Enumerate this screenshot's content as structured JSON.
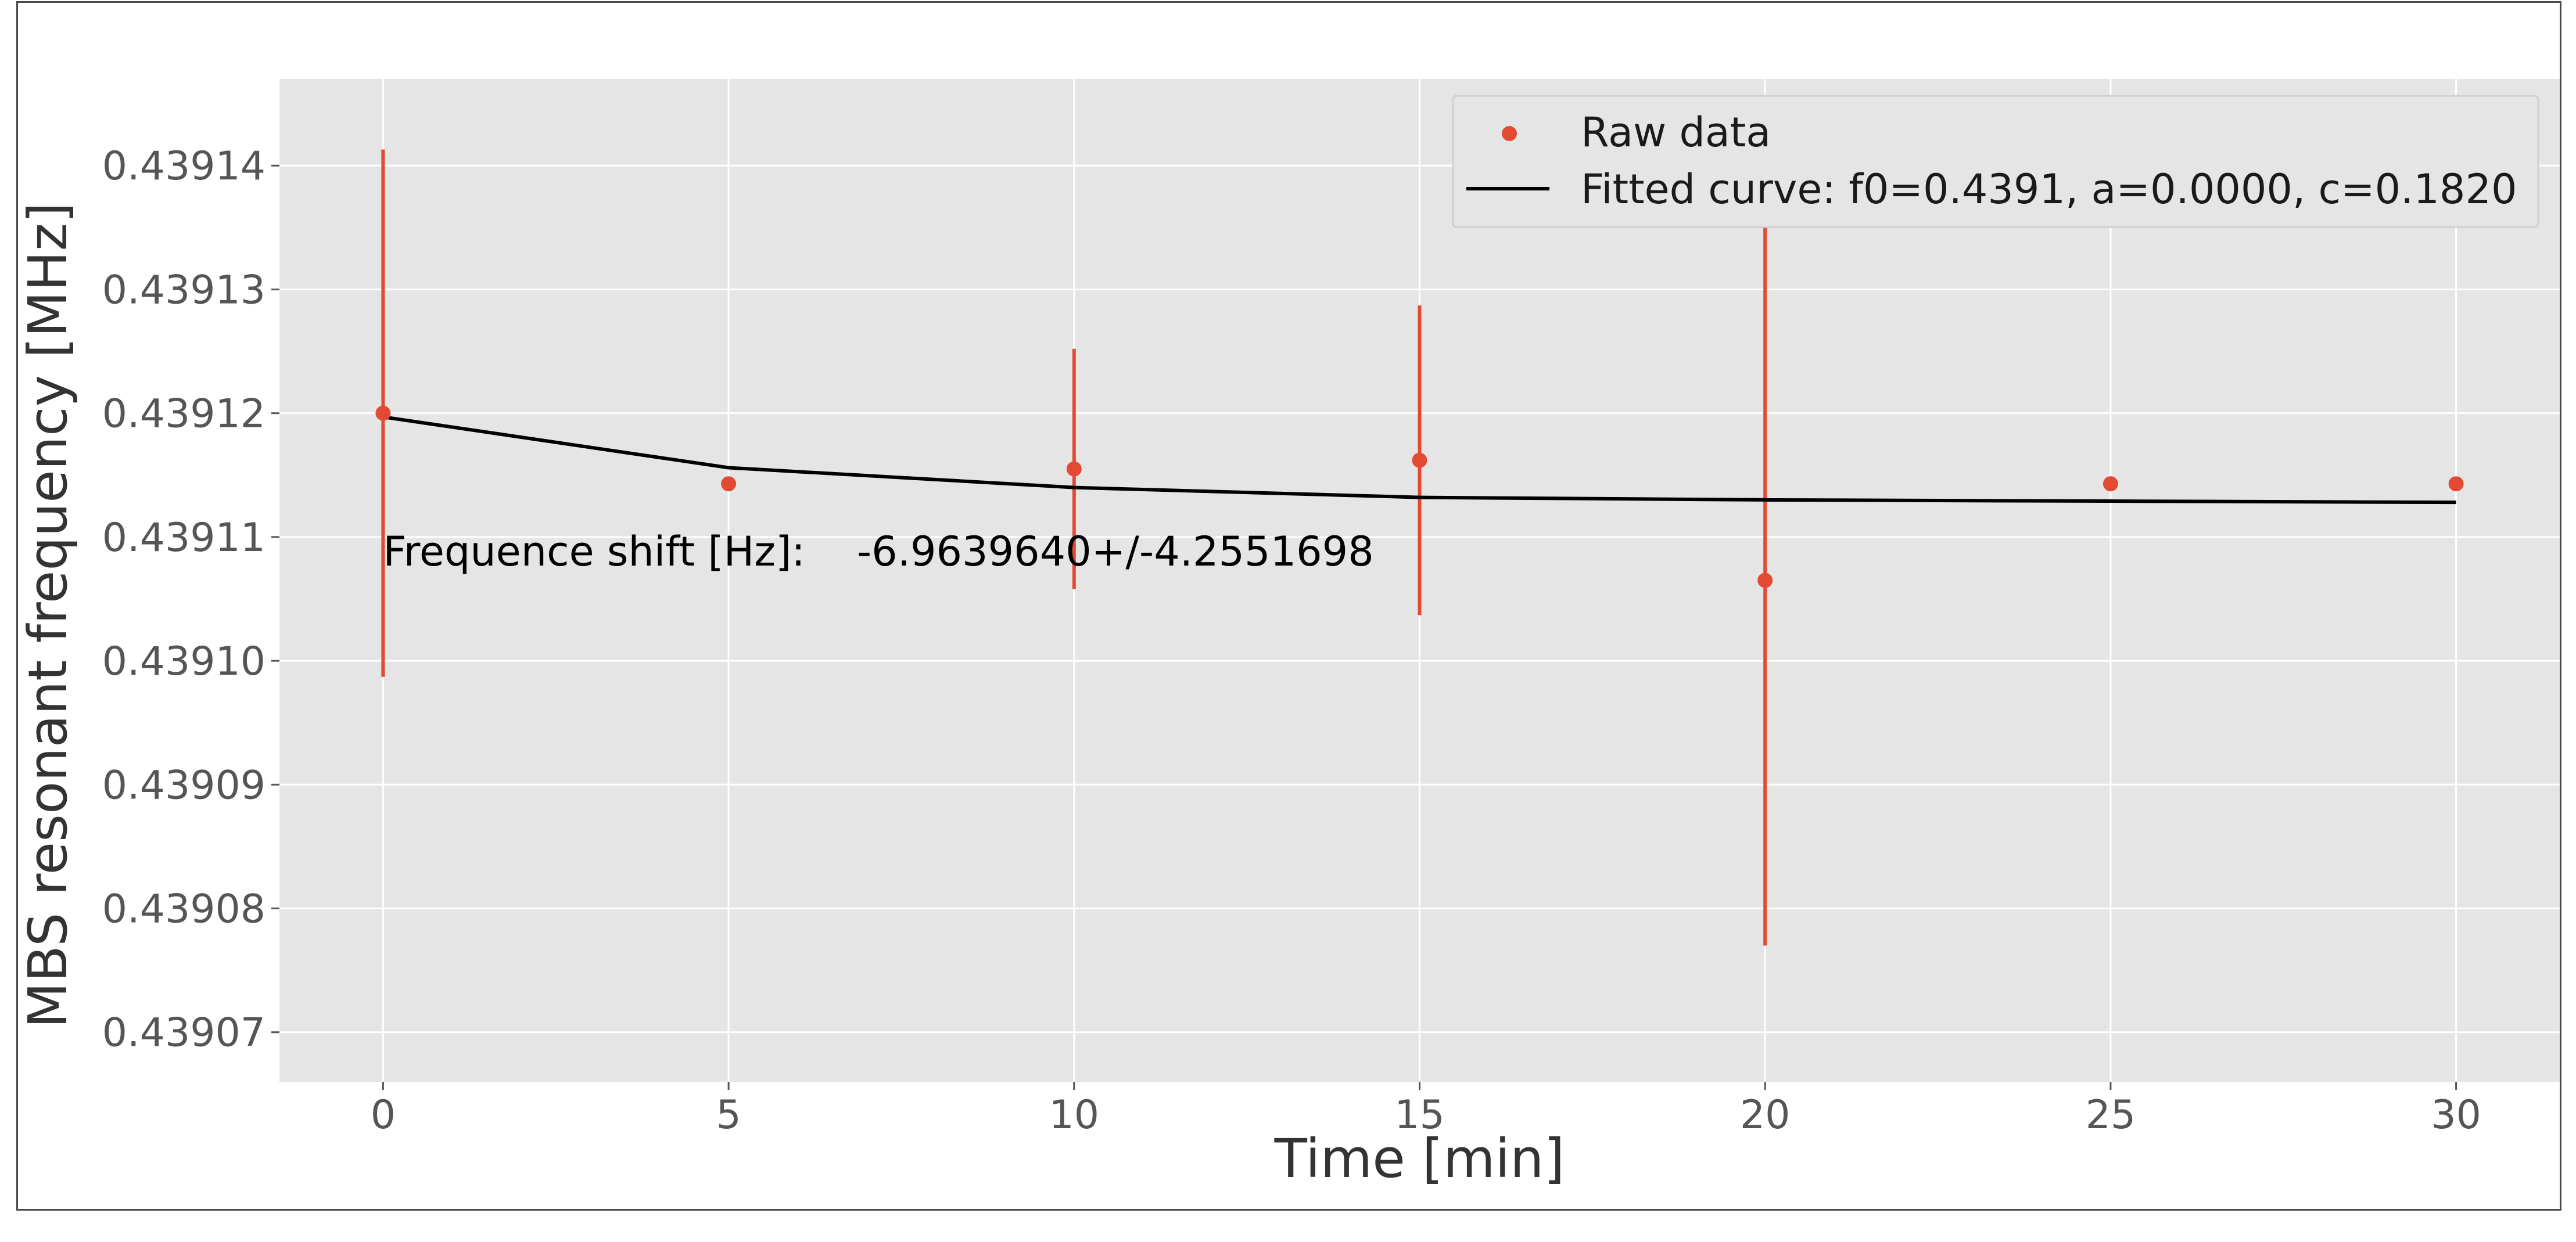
{
  "chart_data": {
    "type": "scatter",
    "title": "",
    "xlabel": "Time [min]",
    "ylabel": "MBS resonant frequency [MHz]",
    "xlim": [
      -1.5,
      31.5
    ],
    "ylim": [
      0.439066,
      0.439147
    ],
    "x_ticks": [
      0,
      5,
      10,
      15,
      20,
      25,
      30
    ],
    "x_tick_labels": [
      "0",
      "5",
      "10",
      "15",
      "20",
      "25",
      "30"
    ],
    "y_ticks": [
      0.43907,
      0.43908,
      0.43909,
      0.4391,
      0.43911,
      0.43912,
      0.43913,
      0.43914
    ],
    "y_tick_labels": [
      "0.43907",
      "0.43908",
      "0.43909",
      "0.43910",
      "0.43911",
      "0.43912",
      "0.43913",
      "0.43914"
    ],
    "grid": true,
    "legend_position": "upper-right",
    "series": [
      {
        "name": "Raw data",
        "kind": "errorbar",
        "color": "#E24A33",
        "x": [
          0,
          5,
          10,
          15,
          20,
          25,
          30
        ],
        "y": [
          0.43912,
          0.4391143,
          0.4391155,
          0.4391162,
          0.4391065,
          0.4391143,
          0.4391143
        ],
        "yerr": [
          2.13e-05,
          0,
          9.7e-06,
          1.25e-05,
          2.95e-05,
          0,
          0
        ]
      },
      {
        "name": "Fitted curve: f0=0.4391, a=0.0000, c=0.1820",
        "kind": "line",
        "color": "#000000",
        "x": [
          0,
          5,
          10,
          15,
          20,
          25,
          30
        ],
        "y": [
          0.4391197,
          0.4391156,
          0.439114,
          0.4391132,
          0.439113,
          0.4391129,
          0.4391128
        ]
      }
    ],
    "annotation": {
      "text": "Frequence shift [Hz]:    -6.9639640+/-4.2551698",
      "x": 0,
      "y": 0.4391077
    }
  }
}
